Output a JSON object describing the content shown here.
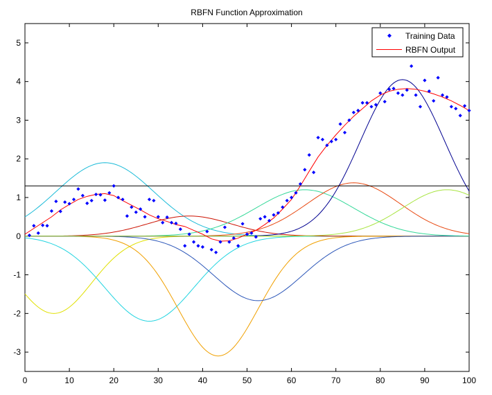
{
  "chart_data": {
    "type": "line",
    "title": "RBFN Function Approximation",
    "xlabel": "",
    "ylabel": "",
    "xlim": [
      0,
      100
    ],
    "ylim": [
      -3.5,
      5.5
    ],
    "xticks": [
      0,
      10,
      20,
      30,
      40,
      50,
      60,
      70,
      80,
      90,
      100
    ],
    "yticks": [
      -3,
      -2,
      -1,
      0,
      1,
      2,
      3,
      4,
      5
    ],
    "legend_position": "top-right",
    "legend": [
      {
        "label": "Training Data",
        "color": "#0000ff",
        "marker": "diamond"
      },
      {
        "label": "RBFN Output",
        "color": "#ff0000",
        "marker": "line"
      }
    ],
    "threshold_line": {
      "y": 1.3,
      "color": "#000000"
    },
    "training_data": {
      "x": [
        1,
        2,
        3,
        4,
        5,
        6,
        7,
        8,
        9,
        10,
        11,
        12,
        13,
        14,
        15,
        16,
        17,
        18,
        19,
        20,
        21,
        22,
        23,
        24,
        25,
        26,
        27,
        28,
        29,
        30,
        31,
        32,
        33,
        34,
        35,
        36,
        37,
        38,
        39,
        40,
        41,
        42,
        43,
        44,
        45,
        46,
        47,
        48,
        49,
        50,
        51,
        52,
        53,
        54,
        55,
        56,
        57,
        58,
        59,
        60,
        61,
        62,
        63,
        64,
        65,
        66,
        67,
        68,
        69,
        70,
        71,
        72,
        73,
        74,
        75,
        76,
        77,
        78,
        79,
        80,
        81,
        82,
        83,
        84,
        85,
        86,
        87,
        88,
        89,
        90,
        91,
        92,
        93,
        94,
        95,
        96,
        97,
        98,
        99,
        100
      ],
      "y": [
        0.02,
        0.27,
        0.08,
        0.28,
        0.27,
        0.65,
        0.9,
        0.64,
        0.88,
        0.84,
        0.95,
        1.22,
        1.05,
        0.85,
        0.92,
        1.08,
        1.07,
        0.93,
        1.12,
        1.3,
        1.0,
        0.95,
        0.52,
        0.75,
        0.62,
        0.7,
        0.5,
        0.95,
        0.92,
        0.5,
        0.35,
        0.49,
        0.35,
        0.33,
        0.18,
        -0.25,
        0.05,
        -0.15,
        -0.25,
        -0.28,
        0.12,
        -0.35,
        -0.42,
        -0.15,
        0.23,
        -0.15,
        -0.05,
        -0.25,
        0.32,
        0.05,
        0.08,
        -0.02,
        0.45,
        0.5,
        0.4,
        0.55,
        0.6,
        0.75,
        0.92,
        1.0,
        1.12,
        1.35,
        1.72,
        2.1,
        1.65,
        2.55,
        2.5,
        2.35,
        2.45,
        2.5,
        2.9,
        2.68,
        3.0,
        3.2,
        3.25,
        3.45,
        3.45,
        3.35,
        3.4,
        3.7,
        3.48,
        3.8,
        3.82,
        3.7,
        3.65,
        3.78,
        4.4,
        3.65,
        3.35,
        4.03,
        3.75,
        3.5,
        4.1,
        3.65,
        3.6,
        3.35,
        3.3,
        3.12,
        3.37,
        3.25
      ]
    },
    "rbfn_output": {
      "color": "#ff0000",
      "x": [
        0,
        2,
        4,
        6,
        8,
        10,
        12,
        14,
        16,
        18,
        20,
        22,
        24,
        26,
        28,
        30,
        32,
        34,
        36,
        38,
        40,
        42,
        44,
        46,
        48,
        50,
        52,
        54,
        56,
        58,
        60,
        62,
        64,
        66,
        68,
        70,
        72,
        74,
        76,
        78,
        80,
        82,
        84,
        86,
        88,
        90,
        92,
        94,
        96,
        98,
        100
      ],
      "y": [
        0.05,
        0.2,
        0.35,
        0.5,
        0.68,
        0.82,
        0.95,
        1.03,
        1.08,
        1.1,
        1.05,
        0.92,
        0.8,
        0.68,
        0.55,
        0.45,
        0.38,
        0.3,
        0.25,
        0.15,
        0.05,
        -0.07,
        -0.13,
        -0.12,
        -0.05,
        0.05,
        0.15,
        0.3,
        0.47,
        0.7,
        0.95,
        1.3,
        1.68,
        2.05,
        2.35,
        2.62,
        2.87,
        3.1,
        3.3,
        3.5,
        3.65,
        3.75,
        3.8,
        3.82,
        3.8,
        3.75,
        3.68,
        3.6,
        3.5,
        3.38,
        3.25
      ]
    },
    "basis_functions": [
      {
        "amplitude": 1.9,
        "center": 18,
        "width": 11,
        "color": "#1bbbd8"
      },
      {
        "amplitude": -2.0,
        "center": 6.5,
        "width": 8.5,
        "color": "#e0e000"
      },
      {
        "amplitude": -2.2,
        "center": 28,
        "width": 10,
        "color": "#22d4e0"
      },
      {
        "amplitude": 0.52,
        "center": 37,
        "width": 9.5,
        "color": "#cc1100"
      },
      {
        "amplitude": -3.1,
        "center": 43.5,
        "width": 9,
        "color": "#f0a000"
      },
      {
        "amplitude": -1.67,
        "center": 52.5,
        "width": 10,
        "color": "#2a55b8"
      },
      {
        "amplitude": 1.2,
        "center": 63,
        "width": 11,
        "color": "#33d898"
      },
      {
        "amplitude": 1.38,
        "center": 74,
        "width": 10.5,
        "color": "#e84810"
      },
      {
        "amplitude": 4.05,
        "center": 85,
        "width": 9.5,
        "color": "#000090"
      },
      {
        "amplitude": 1.2,
        "center": 95,
        "width": 10,
        "color": "#a8e440"
      }
    ]
  }
}
